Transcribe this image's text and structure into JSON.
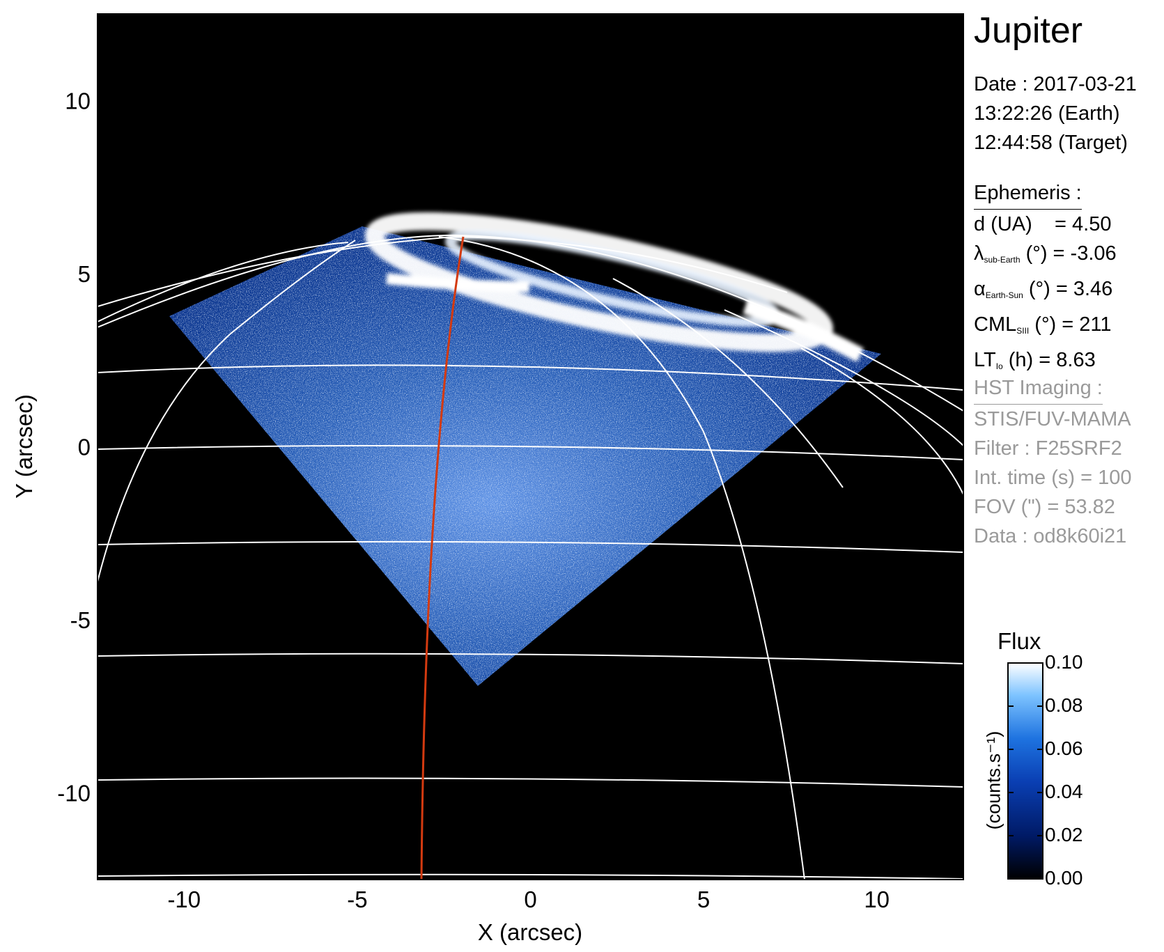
{
  "title": "Jupiter",
  "date": {
    "line1": "Date : 2017-03-21",
    "line2": "13:22:26 (Earth)",
    "line3": "12:44:58 (Target)"
  },
  "ephemeris": {
    "heading": "Ephemeris :",
    "d": {
      "label": "d (UA)",
      "value": "= 4.50"
    },
    "lambda": {
      "sym": "λ",
      "sub": "sub-Earth",
      "label": " (°) = -3.06"
    },
    "alpha": {
      "sym": "α",
      "sub": "Earth-Sun",
      "label": " (°) = 3.46"
    },
    "cml": {
      "sym": "CML",
      "sub": "SIII",
      "label": " (°) = 211"
    },
    "lt": {
      "sym": "LT",
      "sub": "Io",
      "label": " (h) = 8.63"
    }
  },
  "hst": {
    "heading": "HST Imaging :",
    "instrument": "STIS/FUV-MAMA",
    "filter": "Filter : F25SRF2",
    "int_time": "Int. time (s) = 100",
    "fov": "FOV (\") = 53.82",
    "data": "Data : od8k60i21"
  },
  "colorbar": {
    "title": "Flux",
    "unit": "(counts.s⁻¹)",
    "ticks": [
      "0.10",
      "0.08",
      "0.06",
      "0.04",
      "0.02",
      "0.00"
    ],
    "range": [
      0.0,
      0.1
    ]
  },
  "axes": {
    "xlabel": "X (arcsec)",
    "ylabel": "Y (arcsec)",
    "xticks": [
      "-10",
      "-5",
      "0",
      "5",
      "10"
    ],
    "yticks": [
      "10",
      "5",
      "0",
      "-5",
      "-10"
    ],
    "xlim": [
      -12.5,
      12.5
    ],
    "ylim": [
      -12.5,
      12.5
    ]
  },
  "colors": {
    "background": "#000000",
    "grid": "#ffffff",
    "cml_meridian": "#d43a10",
    "colormap": [
      "#000000",
      "#001a66",
      "#0a3fb3",
      "#1e73e0",
      "#7dc3ff",
      "#ffffff"
    ]
  }
}
